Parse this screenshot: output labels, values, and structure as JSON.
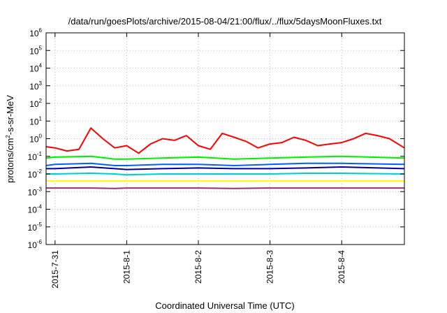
{
  "chart_data": {
    "type": "line",
    "title": "/data/run/goesPlots/archive/2015-08-04/21:00/flux/../flux/5daysMoonFluxes.txt",
    "xlabel": "Coordinated Universal Time (UTC)",
    "ylabel_parts": [
      "protons/cm",
      "2",
      "-s-sr-MeV"
    ],
    "yscale": "log",
    "ylim": [
      1e-06,
      1000000.0
    ],
    "y_ticks": [
      {
        "base": "10",
        "exp": "-6",
        "value": 1e-06
      },
      {
        "base": "10",
        "exp": "-5",
        "value": 1e-05
      },
      {
        "base": "10",
        "exp": "-4",
        "value": 0.0001
      },
      {
        "base": "10",
        "exp": "-3",
        "value": 0.001
      },
      {
        "base": "10",
        "exp": "-2",
        "value": 0.01
      },
      {
        "base": "10",
        "exp": "-1",
        "value": 0.1
      },
      {
        "base": "10",
        "exp": "0",
        "value": 1
      },
      {
        "base": "10",
        "exp": "1",
        "value": 10
      },
      {
        "base": "10",
        "exp": "2",
        "value": 100
      },
      {
        "base": "10",
        "exp": "3",
        "value": 1000
      },
      {
        "base": "10",
        "exp": "4",
        "value": 10000
      },
      {
        "base": "10",
        "exp": "5",
        "value": 100000
      },
      {
        "base": "10",
        "exp": "6",
        "value": 1000000
      }
    ],
    "x_range": [
      "2015-07-30T21:00",
      "2015-08-04T21:00"
    ],
    "x_ticks": [
      {
        "label": "2015-7-31",
        "value": "2015-07-31T00:00"
      },
      {
        "label": "2015-8-1",
        "value": "2015-08-01T00:00"
      },
      {
        "label": "2015-8-2",
        "value": "2015-08-02T00:00"
      },
      {
        "label": "2015-8-3",
        "value": "2015-08-03T00:00"
      },
      {
        "label": "2015-8-4",
        "value": "2015-08-04T00:00"
      }
    ],
    "grid": true,
    "legend": "none",
    "series": [
      {
        "color": "#ff0000",
        "points": [
          [
            "2015-07-30T21:00",
            0.35
          ],
          [
            "2015-07-31T00:00",
            0.3
          ],
          [
            "2015-07-31T04:00",
            0.2
          ],
          [
            "2015-07-31T08:00",
            0.25
          ],
          [
            "2015-07-31T12:00",
            4.0
          ],
          [
            "2015-07-31T16:00",
            1.0
          ],
          [
            "2015-07-31T20:00",
            0.3
          ],
          [
            "2015-08-01T00:00",
            0.4
          ],
          [
            "2015-08-01T04:00",
            0.15
          ],
          [
            "2015-08-01T08:00",
            0.5
          ],
          [
            "2015-08-01T12:00",
            1.0
          ],
          [
            "2015-08-01T16:00",
            0.8
          ],
          [
            "2015-08-01T20:00",
            1.5
          ],
          [
            "2015-08-02T00:00",
            0.4
          ],
          [
            "2015-08-02T04:00",
            0.25
          ],
          [
            "2015-08-02T08:00",
            2.0
          ],
          [
            "2015-08-02T12:00",
            1.2
          ],
          [
            "2015-08-02T16:00",
            0.7
          ],
          [
            "2015-08-02T20:00",
            0.3
          ],
          [
            "2015-08-03T00:00",
            0.5
          ],
          [
            "2015-08-03T04:00",
            0.6
          ],
          [
            "2015-08-03T08:00",
            1.2
          ],
          [
            "2015-08-03T12:00",
            0.8
          ],
          [
            "2015-08-03T16:00",
            0.4
          ],
          [
            "2015-08-03T20:00",
            0.5
          ],
          [
            "2015-08-04T00:00",
            0.6
          ],
          [
            "2015-08-04T04:00",
            1.0
          ],
          [
            "2015-08-04T08:00",
            2.0
          ],
          [
            "2015-08-04T12:00",
            1.5
          ],
          [
            "2015-08-04T16:00",
            1.0
          ],
          [
            "2015-08-04T21:00",
            0.3
          ]
        ]
      },
      {
        "color": "#00ee00",
        "points": [
          [
            "2015-07-30T21:00",
            0.08
          ],
          [
            "2015-07-31T00:00",
            0.09
          ],
          [
            "2015-07-31T12:00",
            0.1
          ],
          [
            "2015-07-31T20:00",
            0.07
          ],
          [
            "2015-08-01T00:00",
            0.07
          ],
          [
            "2015-08-01T12:00",
            0.08
          ],
          [
            "2015-08-02T00:00",
            0.09
          ],
          [
            "2015-08-02T12:00",
            0.07
          ],
          [
            "2015-08-03T00:00",
            0.08
          ],
          [
            "2015-08-03T12:00",
            0.09
          ],
          [
            "2015-08-04T00:00",
            0.1
          ],
          [
            "2015-08-04T21:00",
            0.08
          ]
        ]
      },
      {
        "color": "#0060ff",
        "points": [
          [
            "2015-07-30T21:00",
            0.03
          ],
          [
            "2015-07-31T00:00",
            0.035
          ],
          [
            "2015-07-31T12:00",
            0.04
          ],
          [
            "2015-07-31T20:00",
            0.03
          ],
          [
            "2015-08-01T00:00",
            0.03
          ],
          [
            "2015-08-01T12:00",
            0.035
          ],
          [
            "2015-08-02T00:00",
            0.035
          ],
          [
            "2015-08-02T12:00",
            0.03
          ],
          [
            "2015-08-03T00:00",
            0.035
          ],
          [
            "2015-08-03T12:00",
            0.04
          ],
          [
            "2015-08-04T00:00",
            0.04
          ],
          [
            "2015-08-04T21:00",
            0.035
          ]
        ]
      },
      {
        "color": "#000099",
        "points": [
          [
            "2015-07-30T21:00",
            0.02
          ],
          [
            "2015-07-31T00:00",
            0.02
          ],
          [
            "2015-07-31T12:00",
            0.025
          ],
          [
            "2015-07-31T20:00",
            0.02
          ],
          [
            "2015-08-01T00:00",
            0.018
          ],
          [
            "2015-08-01T12:00",
            0.02
          ],
          [
            "2015-08-02T00:00",
            0.022
          ],
          [
            "2015-08-02T12:00",
            0.02
          ],
          [
            "2015-08-03T00:00",
            0.02
          ],
          [
            "2015-08-03T12:00",
            0.022
          ],
          [
            "2015-08-04T00:00",
            0.025
          ],
          [
            "2015-08-04T21:00",
            0.02
          ]
        ]
      },
      {
        "color": "#00cccc",
        "points": [
          [
            "2015-07-30T21:00",
            0.01
          ],
          [
            "2015-07-31T00:00",
            0.01
          ],
          [
            "2015-07-31T12:00",
            0.011
          ],
          [
            "2015-07-31T20:00",
            0.01
          ],
          [
            "2015-08-01T00:00",
            0.009
          ],
          [
            "2015-08-01T12:00",
            0.01
          ],
          [
            "2015-08-02T00:00",
            0.01
          ],
          [
            "2015-08-02T12:00",
            0.01
          ],
          [
            "2015-08-03T00:00",
            0.01
          ],
          [
            "2015-08-03T12:00",
            0.011
          ],
          [
            "2015-08-04T00:00",
            0.011
          ],
          [
            "2015-08-04T21:00",
            0.01
          ]
        ]
      },
      {
        "color": "#ffff00",
        "points": [
          [
            "2015-07-30T21:00",
            0.004
          ],
          [
            "2015-07-31T00:00",
            0.004
          ],
          [
            "2015-07-31T12:00",
            0.004
          ],
          [
            "2015-07-31T20:00",
            0.004
          ],
          [
            "2015-08-01T00:00",
            0.004
          ],
          [
            "2015-08-01T12:00",
            0.004
          ],
          [
            "2015-08-02T00:00",
            0.004
          ],
          [
            "2015-08-02T12:00",
            0.004
          ],
          [
            "2015-08-03T00:00",
            0.004
          ],
          [
            "2015-08-03T12:00",
            0.004
          ],
          [
            "2015-08-04T00:00",
            0.004
          ],
          [
            "2015-08-04T21:00",
            0.004
          ]
        ]
      },
      {
        "color": "#993366",
        "points": [
          [
            "2015-07-30T21:00",
            0.0016
          ],
          [
            "2015-07-31T00:00",
            0.0016
          ],
          [
            "2015-07-31T12:00",
            0.0016
          ],
          [
            "2015-07-31T20:00",
            0.0015
          ],
          [
            "2015-08-01T00:00",
            0.0016
          ],
          [
            "2015-08-01T12:00",
            0.0016
          ],
          [
            "2015-08-02T00:00",
            0.0016
          ],
          [
            "2015-08-02T12:00",
            0.0015
          ],
          [
            "2015-08-03T00:00",
            0.0016
          ],
          [
            "2015-08-03T12:00",
            0.0016
          ],
          [
            "2015-08-04T00:00",
            0.0016
          ],
          [
            "2015-08-04T21:00",
            0.0016
          ]
        ]
      }
    ]
  }
}
